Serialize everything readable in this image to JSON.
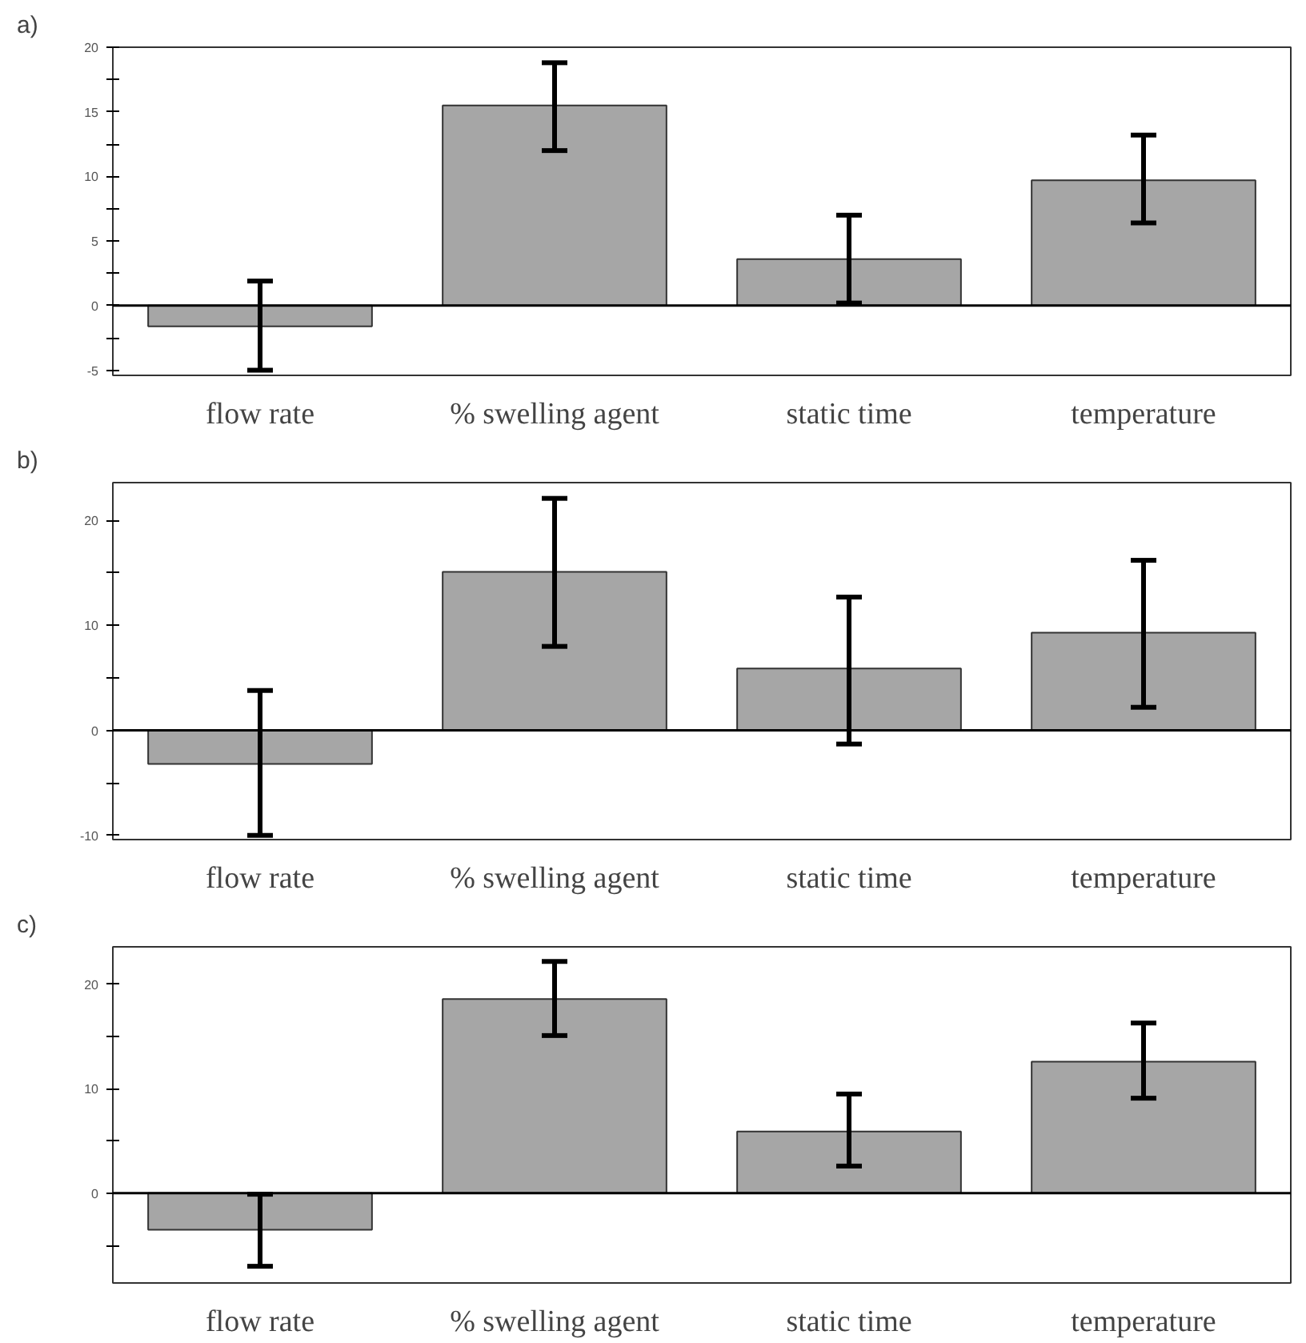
{
  "chart_data": [
    {
      "type": "bar",
      "title": "a)",
      "categories": [
        "flow rate",
        "% swelling agent",
        "static time",
        "temperature"
      ],
      "values": [
        -1.6,
        15.5,
        3.6,
        9.7
      ],
      "color": "#a6a6a6",
      "errors": [
        [
          -5,
          1.9
        ],
        [
          12.0,
          18.8
        ],
        [
          0.2,
          7.0
        ],
        [
          6.4,
          13.2
        ]
      ],
      "ylim": [
        -5.4,
        20
      ],
      "yticks": [
        -5,
        {
          "value": -2.5,
          "label": null
        },
        0,
        {
          "value": 2.5,
          "label": null
        },
        5,
        {
          "value": 7.5,
          "label": null
        },
        10,
        {
          "value": 12.5,
          "label": null
        },
        15,
        {
          "value": 17.5,
          "label": null
        },
        20
      ],
      "ref_lines": [
        {
          "axis": "y",
          "value": 0,
          "color": "#000000"
        }
      ]
    },
    {
      "type": "bar",
      "title": "b)",
      "categories": [
        "flow rate",
        "% swelling agent",
        "static time",
        "temperature"
      ],
      "values": [
        -3.2,
        15.1,
        5.9,
        9.3
      ],
      "color": "#a6a6a6",
      "errors": [
        [
          -10,
          3.8
        ],
        [
          8.0,
          22.1
        ],
        [
          -1.3,
          12.7
        ],
        [
          2.2,
          16.2
        ]
      ],
      "ylim": [
        -10.4,
        23.6
      ],
      "yticks": [
        -10,
        {
          "value": -5,
          "label": null
        },
        0,
        {
          "value": 5,
          "label": null
        },
        10,
        {
          "value": 15,
          "label": null
        },
        20
      ],
      "ref_lines": [
        {
          "axis": "y",
          "value": 0,
          "color": "#000000"
        }
      ]
    },
    {
      "type": "bar",
      "title": "c)",
      "categories": [
        "flow rate",
        "% swelling agent",
        "static time",
        "temperature"
      ],
      "values": [
        -3.5,
        18.6,
        5.9,
        12.6
      ],
      "color": "#a6a6a6",
      "errors": [
        [
          -7.0,
          -0.1
        ],
        [
          15.1,
          22.2
        ],
        [
          2.6,
          9.5
        ],
        [
          9.1,
          16.3
        ]
      ],
      "ylim": [
        -8.6,
        23.6
      ],
      "yticks": [
        {
          "value": -5,
          "label": null
        },
        0,
        {
          "value": 5,
          "label": null
        },
        10,
        {
          "value": 15,
          "label": null
        },
        20
      ],
      "ref_lines": [
        {
          "axis": "y",
          "value": 0,
          "color": "#000000"
        }
      ]
    }
  ]
}
